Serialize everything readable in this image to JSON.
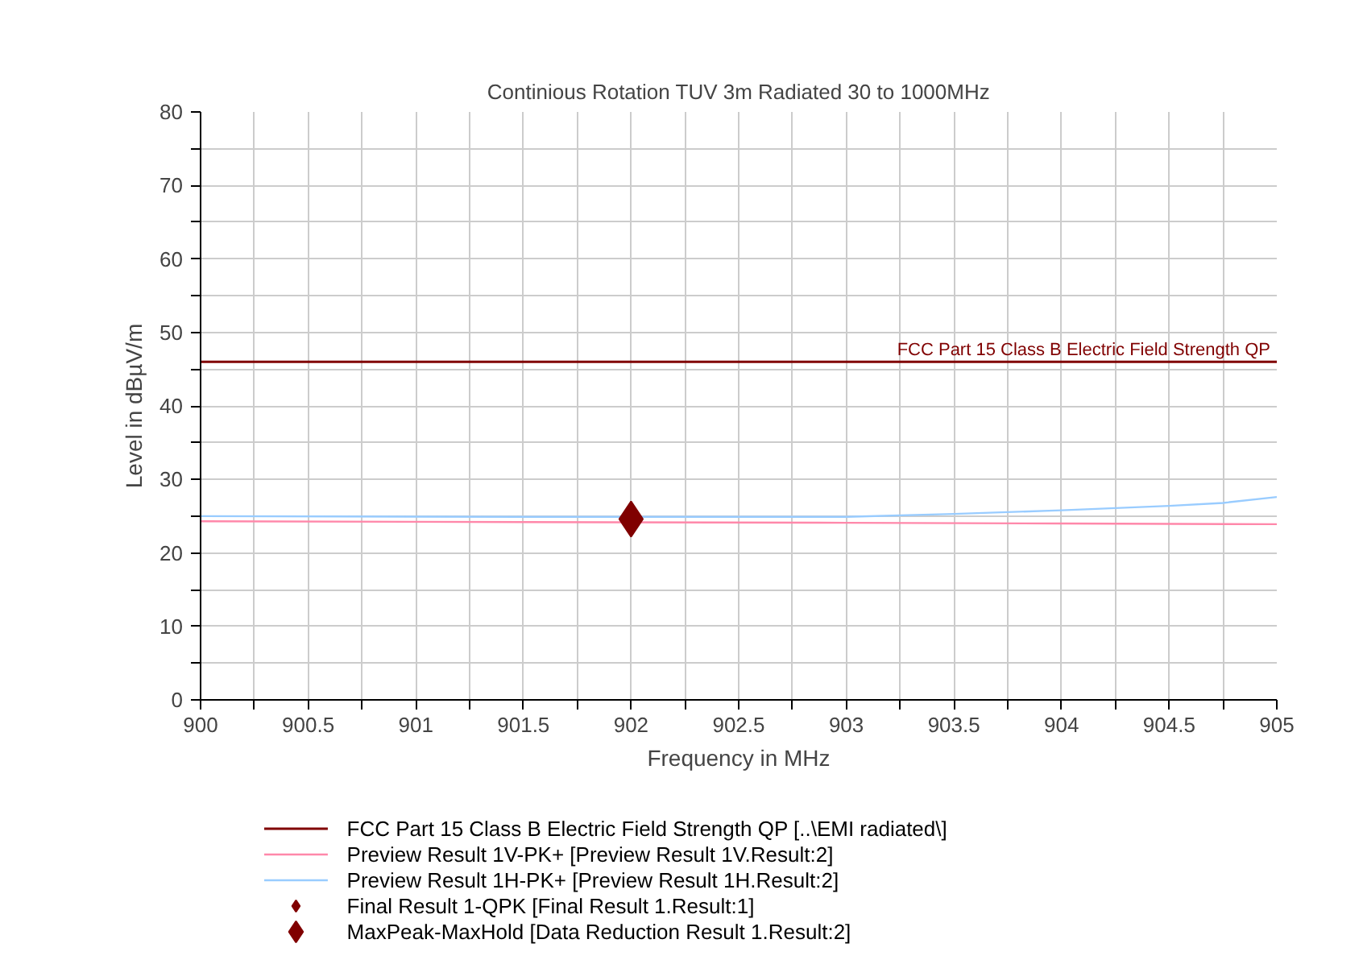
{
  "chart_data": {
    "type": "line",
    "title": "Continious Rotation TUV 3m Radiated 30 to 1000MHz",
    "xlabel": "Frequency in MHz",
    "ylabel": "Level in dBµV/m",
    "xlim": [
      900,
      905
    ],
    "ylim": [
      0,
      80
    ],
    "xticks": [
      900,
      {
        "value": 900.25,
        "label": null
      },
      900.5,
      {
        "value": 900.75,
        "label": null
      },
      901,
      {
        "value": 901.25,
        "label": null
      },
      901.5,
      {
        "value": 901.75,
        "label": null
      },
      902,
      {
        "value": 902.25,
        "label": null
      },
      902.5,
      {
        "value": 902.75,
        "label": null
      },
      903,
      {
        "value": 903.25,
        "label": null
      },
      903.5,
      {
        "value": 903.75,
        "label": null
      },
      904,
      {
        "value": 904.25,
        "label": null
      },
      904.5,
      {
        "value": 904.75,
        "label": null
      },
      905
    ],
    "yticks": [
      0,
      {
        "value": 5,
        "label": null
      },
      10,
      {
        "value": 15,
        "label": null
      },
      20,
      {
        "value": 25,
        "label": null
      },
      30,
      {
        "value": 35,
        "label": null
      },
      40,
      {
        "value": 45,
        "label": null
      },
      50,
      {
        "value": 55,
        "label": null
      },
      60,
      {
        "value": 65,
        "label": null
      },
      70,
      {
        "value": 75,
        "label": null
      },
      80
    ],
    "grid": true,
    "legend": "bottom",
    "series": [
      {
        "name": "FCC Part 15 Class B Electric Field Strength QP   [..\\EMI radiated\\]",
        "color": "#800000",
        "x": [
          900,
          905
        ],
        "values": [
          46,
          46
        ]
      },
      {
        "name": "Preview Result 1V-PK+   [Preview Result 1V.Result:2]",
        "color": "#ff88aa",
        "x": [
          900,
          901.5,
          903,
          904,
          905
        ],
        "values": [
          24.3,
          24.2,
          24.1,
          24.0,
          23.9
        ]
      },
      {
        "name": "Preview Result 1H-PK+   [Preview Result 1H.Result:2]",
        "color": "#99ccff",
        "x": [
          900,
          901.5,
          903,
          903.5,
          904,
          904.5,
          904.75,
          905
        ],
        "values": [
          25,
          24.9,
          24.9,
          25.3,
          25.8,
          26.4,
          26.8,
          27.6
        ]
      },
      {
        "name": "Final Result 1-QPK   [Final Result 1.Result:1]",
        "type": "scatter",
        "marker": "diamond",
        "color": "#800000"
      },
      {
        "name": "MaxPeak-MaxHold   [Data Reduction Result 1.Result:2]",
        "type": "scatter",
        "marker": "diamond",
        "color": "#800000",
        "x": [
          902
        ],
        "values": [
          24.6
        ]
      }
    ],
    "annotations": [
      {
        "text": "FCC Part 15 Class B Electric Field Strength QP",
        "x": 905,
        "y": 46
      }
    ]
  }
}
